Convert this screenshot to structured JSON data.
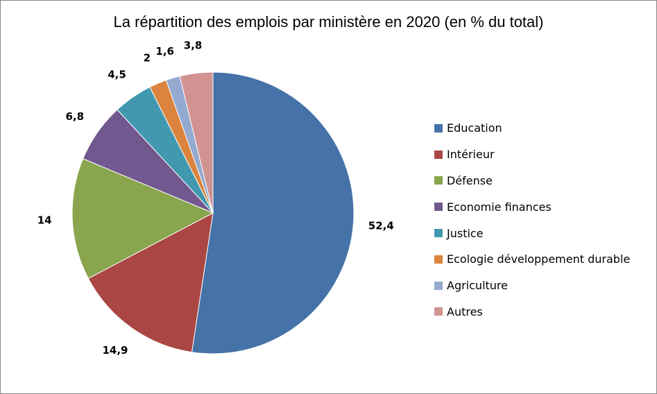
{
  "chart_data": {
    "type": "pie",
    "title": "La répartition des emplois par ministère en 2020 (en % du total)",
    "categories": [
      "Education",
      "Intérieur",
      "Défense",
      "Economie finances",
      "Justice",
      "Ecologie développement durable",
      "Agriculture",
      "Autres"
    ],
    "values": [
      52.4,
      14.9,
      14,
      6.8,
      4.5,
      2,
      1.6,
      3.8
    ],
    "value_labels": [
      "52,4",
      "14,9",
      "14",
      "6,8",
      "4,5",
      "2",
      "1,6",
      "3,8"
    ],
    "colors": [
      "#4572A7",
      "#AA4643",
      "#89A54E",
      "#71588F",
      "#4198AF",
      "#DB843D",
      "#93A9CF",
      "#D19392"
    ],
    "legend_position": "right"
  }
}
